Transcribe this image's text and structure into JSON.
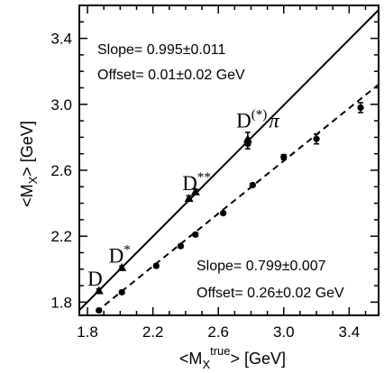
{
  "chart_data": {
    "type": "scatter",
    "title": "",
    "xlabel": {
      "pre": "<M",
      "sub": "X",
      "sup": "true",
      "post": "> [GeV]"
    },
    "ylabel": {
      "pre": "<M",
      "sub": "X",
      "post": "> [GeV]"
    },
    "xlim": [
      1.75,
      3.58
    ],
    "ylim": [
      1.72,
      3.6
    ],
    "x_ticks": [
      1.8,
      2.2,
      2.6,
      3.0,
      3.4
    ],
    "y_ticks": [
      1.8,
      2.2,
      2.6,
      3.0,
      3.4
    ],
    "x_tick_labels": [
      "1.8",
      "2.2",
      "2.6",
      "3.0",
      "3.4"
    ],
    "y_tick_labels": [
      "1.8",
      "2.2",
      "2.6",
      "3.0",
      "3.4"
    ],
    "x_minor_step": 0.1,
    "y_minor_step": 0.1,
    "grid": false,
    "series": [
      {
        "marker": "triangle",
        "line_style": "solid",
        "points": [
          {
            "x": 1.87,
            "y": 1.87,
            "err": 0.01
          },
          {
            "x": 2.01,
            "y": 2.01,
            "err": 0.01
          },
          {
            "x": 2.42,
            "y": 2.43,
            "err": 0.015
          },
          {
            "x": 2.46,
            "y": 2.47,
            "err": 0.015
          },
          {
            "x": 2.78,
            "y": 2.79,
            "err": 0.04
          }
        ],
        "fit": {
          "slope": 0.995,
          "offset": 0.01
        },
        "annotation": {
          "slope_text": "Slope= 0.995±0.011",
          "offset_text": "Offset= 0.01±0.02 GeV"
        }
      },
      {
        "marker": "circle",
        "line_style": "dashed",
        "points": [
          {
            "x": 1.87,
            "y": 1.75,
            "err": 0.01
          },
          {
            "x": 2.01,
            "y": 1.86,
            "err": 0.01
          },
          {
            "x": 2.22,
            "y": 2.02,
            "err": 0.01
          },
          {
            "x": 2.37,
            "y": 2.14,
            "err": 0.01
          },
          {
            "x": 2.46,
            "y": 2.21,
            "err": 0.01
          },
          {
            "x": 2.63,
            "y": 2.34,
            "err": 0.01
          },
          {
            "x": 2.78,
            "y": 2.76,
            "err": 0.03
          },
          {
            "x": 2.81,
            "y": 2.51,
            "err": 0.01
          },
          {
            "x": 3.0,
            "y": 2.68,
            "err": 0.015
          },
          {
            "x": 3.2,
            "y": 2.79,
            "err": 0.03
          },
          {
            "x": 3.47,
            "y": 2.98,
            "err": 0.03
          }
        ],
        "fit": {
          "slope": 0.799,
          "offset": 0.26
        },
        "annotation": {
          "slope_text": "Slope= 0.799±0.007",
          "offset_text": "Offset= 0.26±0.02 GeV"
        }
      }
    ],
    "point_labels": [
      {
        "text": "D",
        "sup": "",
        "sub": "",
        "x": 1.8,
        "y": 1.9
      },
      {
        "text": "D",
        "sup": "*",
        "sub": "",
        "x": 1.93,
        "y": 2.04
      },
      {
        "text": "D",
        "sup": "**",
        "sub": "",
        "x": 2.38,
        "y": 2.48
      },
      {
        "text": "D",
        "sup": "(*)",
        "sub": "π",
        "x": 2.71,
        "y": 2.86
      }
    ]
  }
}
